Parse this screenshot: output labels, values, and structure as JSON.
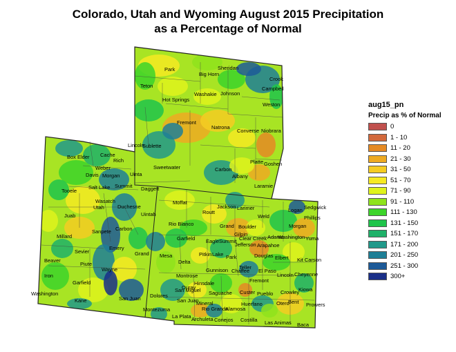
{
  "title": {
    "line1": "Colorado, Utah and Wyoming August 2015 Precipitation",
    "line2": "as a Percentage of Normal"
  },
  "legend": {
    "title": "aug15_pn",
    "subtitle": "Precip as % of Normal",
    "items": [
      {
        "label": "0",
        "color": "#c0504d"
      },
      {
        "label": "1 - 10",
        "color": "#d2693c"
      },
      {
        "label": "11 - 20",
        "color": "#e58a24"
      },
      {
        "label": "21 - 30",
        "color": "#eeaa22"
      },
      {
        "label": "31 - 50",
        "color": "#f5cc22"
      },
      {
        "label": "51 - 70",
        "color": "#f6ea22"
      },
      {
        "label": "71 - 90",
        "color": "#dff31c"
      },
      {
        "label": "91 - 110",
        "color": "#8fe31c"
      },
      {
        "label": "111 - 130",
        "color": "#3cd42a"
      },
      {
        "label": "131 - 150",
        "color": "#1fc44b"
      },
      {
        "label": "151 - 170",
        "color": "#1fb169"
      },
      {
        "label": "171 - 200",
        "color": "#21998a"
      },
      {
        "label": "201 - 250",
        "color": "#1e7f96"
      },
      {
        "label": "251 - 300",
        "color": "#1d5a98"
      },
      {
        "label": "300+",
        "color": "#1a2f88"
      }
    ]
  },
  "map": {
    "counties": {
      "wyoming": [
        "Park",
        "Big Horn",
        "Sheridan",
        "Crook",
        "Teton",
        "Washakie",
        "Johnson",
        "Campbell",
        "Hot Springs",
        "Weston",
        "Fremont",
        "Natrona",
        "Converse",
        "Niobrara",
        "Sublette",
        "Lincoln",
        "Sweetwater",
        "Carbon",
        "Albany",
        "Platte",
        "Goshen",
        "Laramie",
        "Uinta"
      ],
      "utah": [
        "Box Elder",
        "Cache",
        "Rich",
        "Weber",
        "Davis",
        "Morgan",
        "Salt Lake",
        "Summit",
        "Daggett",
        "Tooele",
        "Wasatch",
        "Duchesne",
        "Utah",
        "Juab",
        "Carbon",
        "Uintah",
        "Millard",
        "Sanpete",
        "Emery",
        "Sevier",
        "Grand",
        "Beaver",
        "Piute",
        "Wayne",
        "Iron",
        "Garfield",
        "Washington",
        "Kane",
        "San Juan"
      ],
      "colorado": [
        "Moffat",
        "Jackson",
        "Larimer",
        "Weld",
        "Logan",
        "Sedgwick",
        "Phillips",
        "Routt",
        "Rio Blanco",
        "Grand",
        "Boulder",
        "Morgan",
        "Gilpin",
        "Washington",
        "Yuma",
        "Garfield",
        "Eagle",
        "Summit",
        "Clear Creek",
        "Jefferson",
        "Adams",
        "Arapahoe",
        "Mesa",
        "Pitkin",
        "Lake",
        "Park",
        "Douglas",
        "Elbert",
        "Kit Carson",
        "Delta",
        "Teller",
        "El Paso",
        "Lincoln",
        "Cheyenne",
        "Montrose",
        "Gunnison",
        "Chaffee",
        "Fremont",
        "Ouray",
        "San Miguel",
        "Hinsdale",
        "San Juan",
        "Saguache",
        "Custer",
        "Pueblo",
        "Crowley",
        "Kiowa",
        "Dolores",
        "Mineral",
        "Otero",
        "Bent",
        "Prowers",
        "Montezuma",
        "Rio Grande",
        "Alamosa",
        "Huerfano",
        "La Plata",
        "Archuleta",
        "Conejos",
        "Costilla",
        "Las Animas",
        "Baca"
      ]
    }
  }
}
